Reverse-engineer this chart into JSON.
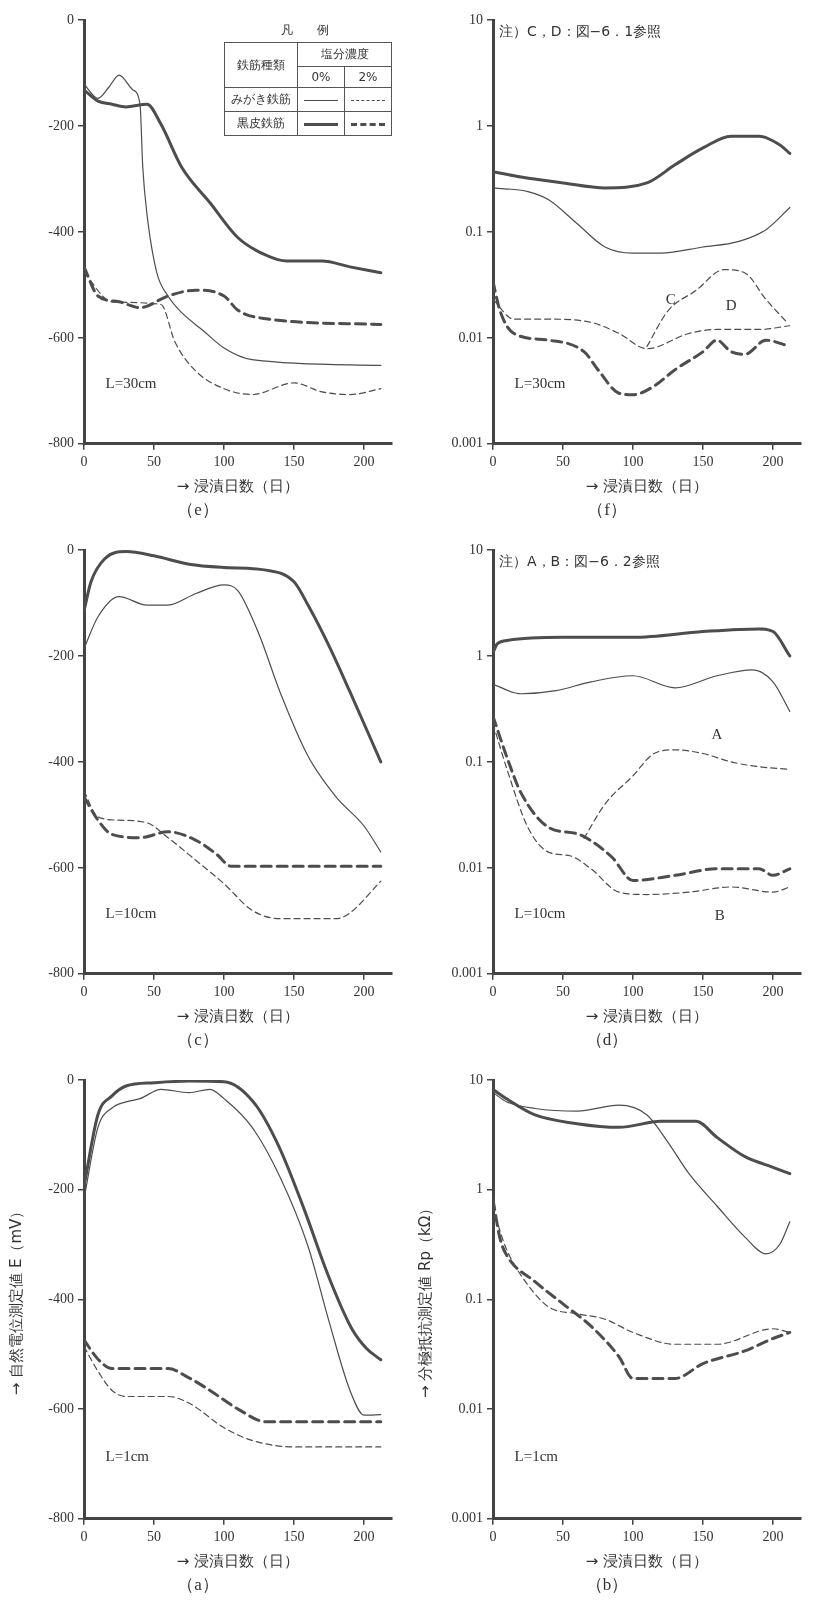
{
  "chart_data": [
    {
      "type": "line",
      "title": "（e）",
      "xlabel": "→ 浸漬日数（日）",
      "xlim": [
        0,
        220
      ],
      "xticks": [
        0,
        50,
        100,
        150,
        200
      ],
      "ylim": [
        -800,
        0
      ],
      "yticks": [
        -800,
        -600,
        -400,
        -200,
        0
      ],
      "marker": "none",
      "legend_title": "凡　例",
      "annotations": [
        "L=30cm",
        "鉄筋種類",
        "塩分濃度",
        "0%",
        "2%",
        "みがき鉄筋",
        "黒皮鉄筋"
      ],
      "series": [
        {
          "color": "#4d4d4d",
          "line_style": "solid",
          "x": [
            0,
            10,
            18,
            25,
            35,
            40,
            42,
            45,
            52,
            60,
            70,
            85,
            100,
            120,
            212
          ],
          "values": [
            -121,
            -148,
            -126,
            -104,
            -132,
            -159,
            -279,
            -367,
            -477,
            -521,
            -553,
            -586,
            -619,
            -641,
            -652
          ]
        },
        {
          "color": "#4d4d4d",
          "line_style": "solid",
          "x": [
            0,
            10,
            20,
            30,
            45,
            55,
            70,
            90,
            110,
            130,
            145,
            170,
            190,
            212
          ],
          "values": [
            -132,
            -153,
            -159,
            -164,
            -159,
            -197,
            -279,
            -345,
            -411,
            -444,
            -455,
            -455,
            -466,
            -477
          ]
        },
        {
          "color": "#4d4d4d",
          "line_style": "dashed",
          "x": [
            0,
            20,
            55,
            65,
            80,
            100,
            120,
            150,
            170,
            190,
            212
          ],
          "values": [
            -477,
            -532,
            -537,
            -608,
            -663,
            -696,
            -707,
            -685,
            -702,
            -707,
            -696
          ]
        },
        {
          "color": "#4d4d4d",
          "line_style": "dashed",
          "x": [
            0,
            10,
            25,
            40,
            60,
            80,
            100,
            110,
            130,
            212
          ],
          "values": [
            -466,
            -521,
            -532,
            -543,
            -521,
            -510,
            -521,
            -548,
            -564,
            -575
          ]
        }
      ]
    },
    {
      "type": "line",
      "title": "（f）",
      "xlabel": "→ 浸漬日数（日）",
      "log": true,
      "xlim": [
        0,
        220
      ],
      "xticks": [
        0,
        50,
        100,
        150,
        200
      ],
      "ylim": [
        0.001,
        10
      ],
      "yticks": [
        0.001,
        0.01,
        0.1,
        1,
        10
      ],
      "marker": "none",
      "annotations": [
        "L=30cm",
        "注）C，D：図−6．1参照",
        "C",
        "D"
      ],
      "series": [
        {
          "color": "#4d4d4d",
          "line_style": "solid",
          "x": [
            0,
            25,
            40,
            60,
            80,
            100,
            120,
            150,
            175,
            195,
            212
          ],
          "values": [
            0.26,
            0.24,
            0.2,
            0.12,
            0.072,
            0.063,
            0.063,
            0.072,
            0.081,
            0.105,
            0.17
          ]
        },
        {
          "color": "#4d4d4d",
          "line_style": "solid",
          "x": [
            0,
            20,
            50,
            80,
            110,
            130,
            150,
            170,
            190,
            205,
            212
          ],
          "values": [
            0.37,
            0.33,
            0.29,
            0.26,
            0.29,
            0.43,
            0.62,
            0.8,
            0.8,
            0.66,
            0.55
          ]
        },
        {
          "color": "#4d4d4d",
          "line_style": "dashed",
          "x": [
            0,
            15,
            40,
            70,
            90,
            110,
            140,
            160,
            190,
            212
          ],
          "values": [
            0.023,
            0.015,
            0.015,
            0.014,
            0.011,
            0.0079,
            0.011,
            0.012,
            0.012,
            0.013
          ]
        },
        {
          "color": "#4d4d4d",
          "line_style": "dashed",
          "x": [
            0,
            5,
            15,
            40,
            65,
            75,
            90,
            100,
            115,
            130,
            150,
            160,
            170,
            180,
            195,
            212
          ],
          "values": [
            0.034,
            0.018,
            0.011,
            0.0095,
            0.0074,
            0.005,
            0.003,
            0.0029,
            0.0035,
            0.005,
            0.0074,
            0.0095,
            0.0074,
            0.007,
            0.0095,
            0.0083
          ]
        },
        {
          "color": "#4d4d4d",
          "line_style": "dashed",
          "x": [
            110,
            125,
            145,
            165,
            180,
            195,
            210
          ],
          "values": [
            0.0083,
            0.018,
            0.028,
            0.044,
            0.041,
            0.023,
            0.014
          ]
        }
      ]
    },
    {
      "type": "line",
      "title": "（c）",
      "xlabel": "→ 浸漬日数（日）",
      "xlim": [
        0,
        220
      ],
      "xticks": [
        0,
        50,
        100,
        150,
        200
      ],
      "ylim": [
        -800,
        0
      ],
      "yticks": [
        -800,
        -600,
        -400,
        -200,
        0
      ],
      "marker": "none",
      "annotations": [
        "L=10cm"
      ],
      "series": [
        {
          "color": "#4d4d4d",
          "line_style": "solid",
          "x": [
            0,
            10,
            25,
            45,
            60,
            80,
            100,
            110,
            125,
            140,
            160,
            180,
            200,
            212
          ],
          "values": [
            -186,
            -126,
            -88,
            -104,
            -104,
            -82,
            -66,
            -77,
            -159,
            -268,
            -389,
            -466,
            -521,
            -570
          ]
        },
        {
          "color": "#4d4d4d",
          "line_style": "solid",
          "x": [
            0,
            5,
            15,
            30,
            50,
            75,
            100,
            130,
            150,
            160,
            175,
            190,
            212
          ],
          "values": [
            -115,
            -60,
            -16,
            -3,
            -11,
            -27,
            -33,
            -38,
            -60,
            -104,
            -181,
            -268,
            -400
          ]
        },
        {
          "color": "#4d4d4d",
          "line_style": "dashed",
          "x": [
            0,
            10,
            25,
            45,
            60,
            80,
            100,
            120,
            140,
            180,
            190,
            212
          ],
          "values": [
            -455,
            -504,
            -510,
            -515,
            -543,
            -586,
            -630,
            -680,
            -696,
            -696,
            -685,
            -625
          ]
        },
        {
          "color": "#4d4d4d",
          "line_style": "dashed",
          "x": [
            0,
            10,
            20,
            40,
            60,
            80,
            95,
            105,
            130,
            212
          ],
          "values": [
            -466,
            -510,
            -537,
            -543,
            -532,
            -548,
            -575,
            -597,
            -597,
            -597
          ]
        }
      ]
    },
    {
      "type": "line",
      "title": "（d）",
      "xlabel": "→ 浸漬日数（日）",
      "log": true,
      "xlim": [
        0,
        220
      ],
      "xticks": [
        0,
        50,
        100,
        150,
        200
      ],
      "ylim": [
        0.001,
        10
      ],
      "yticks": [
        0.001,
        0.01,
        0.1,
        1,
        10
      ],
      "marker": "none",
      "annotations": [
        "L=10cm",
        "注）A，B：図−6．2参照",
        "A",
        "B"
      ],
      "series": [
        {
          "color": "#4d4d4d",
          "line_style": "solid",
          "x": [
            0,
            20,
            45,
            70,
            100,
            130,
            160,
            185,
            200,
            212
          ],
          "values": [
            0.54,
            0.44,
            0.47,
            0.57,
            0.65,
            0.5,
            0.65,
            0.74,
            0.57,
            0.3
          ]
        },
        {
          "color": "#4d4d4d",
          "line_style": "solid",
          "x": [
            0,
            3,
            10,
            50,
            100,
            150,
            190,
            200,
            212
          ],
          "values": [
            1.07,
            1.3,
            1.4,
            1.5,
            1.5,
            1.7,
            1.8,
            1.7,
            1.0
          ]
        },
        {
          "color": "#4d4d4d",
          "line_style": "dashed",
          "x": [
            0,
            10,
            25,
            40,
            55,
            70,
            90,
            110,
            140,
            170,
            200,
            212
          ],
          "values": [
            0.23,
            0.085,
            0.024,
            0.014,
            0.013,
            0.0098,
            0.0059,
            0.0056,
            0.0059,
            0.0066,
            0.0059,
            0.0066
          ]
        },
        {
          "color": "#4d4d4d",
          "line_style": "dashed",
          "x": [
            0,
            10,
            20,
            40,
            60,
            70,
            85,
            100,
            130,
            160,
            190,
            200,
            212
          ],
          "values": [
            0.27,
            0.11,
            0.051,
            0.024,
            0.021,
            0.018,
            0.0126,
            0.0076,
            0.0085,
            0.0098,
            0.0098,
            0.0085,
            0.0098
          ]
        },
        {
          "color": "#4d4d4d",
          "line_style": "dashed",
          "x": [
            65,
            80,
            100,
            115,
            130,
            150,
            170,
            190,
            212
          ],
          "values": [
            0.019,
            0.04,
            0.074,
            0.12,
            0.13,
            0.12,
            0.1,
            0.09,
            0.085
          ]
        }
      ]
    },
    {
      "type": "line",
      "title": "（a）",
      "xlabel": "→ 浸漬日数（日）",
      "ylabel": "→ 自然電位測定値 E（mV）",
      "xlim": [
        0,
        220
      ],
      "xticks": [
        0,
        50,
        100,
        150,
        200
      ],
      "ylim": [
        -800,
        0
      ],
      "yticks": [
        -800,
        -600,
        -400,
        -200,
        0
      ],
      "marker": "none",
      "annotations": [
        "L=1cm"
      ],
      "series": [
        {
          "color": "#4d4d4d",
          "line_style": "solid",
          "x": [
            0,
            10,
            20,
            30,
            40,
            55,
            75,
            90,
            100,
            120,
            140,
            160,
            175,
            190,
            200,
            212
          ],
          "values": [
            -217,
            -86,
            -51,
            -40,
            -34,
            -17,
            -23,
            -17,
            -34,
            -86,
            -177,
            -303,
            -440,
            -566,
            -611,
            -610
          ]
        },
        {
          "color": "#4d4d4d",
          "line_style": "solid",
          "x": [
            0,
            10,
            20,
            30,
            50,
            75,
            100,
            121,
            139,
            157,
            175,
            191,
            202,
            212
          ],
          "values": [
            -194,
            -63,
            -29,
            -11,
            -5,
            -2,
            -3,
            -40,
            -120,
            -234,
            -360,
            -452,
            -490,
            -510
          ]
        },
        {
          "color": "#4d4d4d",
          "line_style": "dashed",
          "x": [
            0,
            10,
            20,
            30,
            60,
            75,
            100,
            120,
            150,
            212
          ],
          "values": [
            -486,
            -531,
            -566,
            -577,
            -577,
            -589,
            -634,
            -657,
            -669,
            -669
          ]
        },
        {
          "color": "#4d4d4d",
          "line_style": "dashed",
          "x": [
            0,
            10,
            20,
            40,
            60,
            75,
            90,
            110,
            130,
            212
          ],
          "values": [
            -474,
            -509,
            -526,
            -526,
            -526,
            -543,
            -566,
            -600,
            -623,
            -623
          ]
        }
      ]
    },
    {
      "type": "line",
      "title": "（b）",
      "xlabel": "→ 浸漬日数（日）",
      "ylabel": "→ 分極抵抗測定値 Rp（kΩ）",
      "log": true,
      "xlim": [
        0,
        220
      ],
      "xticks": [
        0,
        50,
        100,
        150,
        200
      ],
      "ylim": [
        0.001,
        10
      ],
      "yticks": [
        0.001,
        0.01,
        0.1,
        1,
        10
      ],
      "marker": "none",
      "annotations": [
        "L=1cm"
      ],
      "series": [
        {
          "color": "#4d4d4d",
          "line_style": "solid",
          "x": [
            0,
            10,
            30,
            60,
            90,
            110,
            125,
            140,
            160,
            180,
            195,
            205,
            212
          ],
          "values": [
            7.7,
            6.3,
            5.5,
            5.2,
            5.9,
            4.8,
            2.7,
            1.4,
            0.71,
            0.37,
            0.26,
            0.32,
            0.51
          ]
        },
        {
          "color": "#4d4d4d",
          "line_style": "solid",
          "x": [
            0,
            10,
            30,
            60,
            90,
            120,
            145,
            160,
            180,
            200,
            212
          ],
          "values": [
            8.2,
            6.7,
            4.8,
            4.0,
            3.7,
            4.2,
            4.2,
            3.0,
            2.0,
            1.6,
            1.4
          ]
        },
        {
          "color": "#4d4d4d",
          "line_style": "dashed",
          "x": [
            0,
            5,
            10,
            25,
            40,
            60,
            80,
            100,
            130,
            160,
            200,
            212
          ],
          "values": [
            0.71,
            0.42,
            0.28,
            0.135,
            0.085,
            0.074,
            0.066,
            0.05,
            0.039,
            0.039,
            0.054,
            0.05
          ]
        },
        {
          "color": "#4d4d4d",
          "line_style": "dashed",
          "x": [
            0,
            5,
            10,
            30,
            50,
            70,
            90,
            100,
            130,
            150,
            180,
            200,
            212
          ],
          "values": [
            0.81,
            0.36,
            0.25,
            0.145,
            0.091,
            0.057,
            0.03,
            0.019,
            0.019,
            0.026,
            0.034,
            0.044,
            0.05
          ]
        }
      ]
    }
  ]
}
